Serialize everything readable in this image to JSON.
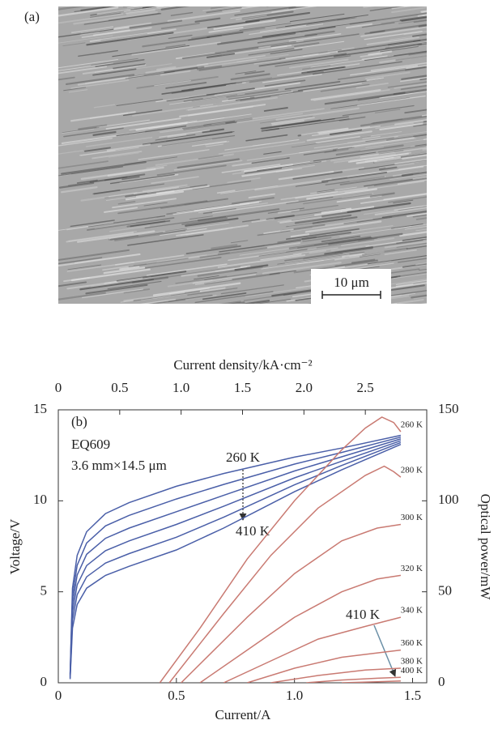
{
  "image": {
    "label": "(a)",
    "scale_bar": "10 μm"
  },
  "chart_data": {
    "type": "line",
    "panel_label": "(b)",
    "annotations": [
      "EQ609",
      "3.6 mm×14.5 μm",
      "260 K",
      "410 K",
      "410 K"
    ],
    "xlabel": "Current/A",
    "x2label": "Current density/kA·cm⁻²",
    "ylabel": "Voltage/V",
    "y2label": "Optical power/mW",
    "xlim": [
      0,
      1.56
    ],
    "xticks": [
      0,
      0.5,
      {
        "value": 1,
        "label": "1.0"
      },
      1.5
    ],
    "x2lim": [
      0,
      3.0
    ],
    "x2ticks": [
      0,
      0.5,
      {
        "value": 1,
        "label": "1.0"
      },
      1.5,
      {
        "value": 2,
        "label": "2.0"
      },
      2.5
    ],
    "ylim": [
      0,
      15
    ],
    "yticks": [
      0,
      5,
      10,
      15
    ],
    "y2lim": [
      0,
      150
    ],
    "y2ticks": [
      0,
      50,
      100,
      150
    ],
    "y_color": "#4a62ae",
    "y2_color": "#d9534a",
    "series": [
      {
        "color": "#4a5fa8",
        "x": [
          0.05,
          0.06,
          0.08,
          0.12,
          0.2,
          0.3,
          0.5,
          0.7,
          1.0,
          1.2,
          1.45
        ],
        "values": [
          0.5,
          5.2,
          7.0,
          8.3,
          9.3,
          9.9,
          10.8,
          11.5,
          12.4,
          12.9,
          13.6
        ]
      },
      {
        "color": "#4a5fa8",
        "x": [
          0.05,
          0.06,
          0.08,
          0.12,
          0.2,
          0.3,
          0.5,
          0.7,
          1.0,
          1.2,
          1.45
        ],
        "values": [
          0.44,
          4.76,
          6.46,
          7.68,
          8.62,
          9.2,
          10.1,
          10.9,
          12.02,
          12.66,
          13.5
        ]
      },
      {
        "color": "#4a5fa8",
        "x": [
          0.05,
          0.06,
          0.08,
          0.12,
          0.2,
          0.3,
          0.5,
          0.7,
          1.0,
          1.2,
          1.45
        ],
        "values": [
          0.38,
          4.32,
          5.92,
          7.06,
          7.94,
          8.5,
          9.4,
          10.3,
          11.64,
          12.42,
          13.4
        ]
      },
      {
        "color": "#4a5fa8",
        "x": [
          0.05,
          0.06,
          0.08,
          0.12,
          0.2,
          0.3,
          0.5,
          0.7,
          1.0,
          1.2,
          1.45
        ],
        "values": [
          0.32,
          3.88,
          5.38,
          6.44,
          7.26,
          7.8,
          8.7,
          9.7,
          11.26,
          12.18,
          13.3
        ]
      },
      {
        "color": "#4a5fa8",
        "x": [
          0.05,
          0.06,
          0.08,
          0.12,
          0.2,
          0.3,
          0.5,
          0.7,
          1.0,
          1.2,
          1.45
        ],
        "values": [
          0.26,
          3.44,
          4.84,
          5.82,
          6.58,
          7.1,
          8.0,
          9.1,
          10.88,
          11.94,
          13.2
        ]
      },
      {
        "color": "#4a5fa8",
        "x": [
          0.05,
          0.06,
          0.08,
          0.12,
          0.2,
          0.3,
          0.5,
          0.7,
          1.0,
          1.2,
          1.45
        ],
        "values": [
          0.2,
          3.0,
          4.3,
          5.2,
          5.9,
          6.4,
          7.3,
          8.5,
          10.5,
          11.7,
          13.1
        ]
      },
      {
        "name": "260 K",
        "color": "#c97a72",
        "axis": "y2",
        "x": [
          0.43,
          0.6,
          0.8,
          1.0,
          1.2,
          1.3,
          1.37,
          1.42,
          1.45
        ],
        "values": [
          0,
          30,
          68,
          100,
          128,
          140,
          146,
          143,
          138
        ]
      },
      {
        "name": "280 K",
        "color": "#c97a72",
        "axis": "y2",
        "x": [
          0.47,
          0.7,
          0.9,
          1.1,
          1.3,
          1.38,
          1.42,
          1.45
        ],
        "values": [
          0,
          38,
          70,
          96,
          114,
          119,
          116,
          113
        ]
      },
      {
        "name": "300 K",
        "color": "#c97a72",
        "axis": "y2",
        "x": [
          0.52,
          0.8,
          1.0,
          1.2,
          1.35,
          1.45
        ],
        "values": [
          0,
          36,
          60,
          78,
          85,
          87
        ]
      },
      {
        "name": "320 K",
        "color": "#c97a72",
        "axis": "y2",
        "x": [
          0.6,
          0.8,
          1.0,
          1.2,
          1.35,
          1.45
        ],
        "values": [
          0,
          18,
          36,
          50,
          57,
          59
        ]
      },
      {
        "name": "340 K",
        "color": "#c97a72",
        "axis": "y2",
        "x": [
          0.7,
          0.9,
          1.1,
          1.3,
          1.45
        ],
        "values": [
          0,
          12,
          24,
          31,
          36
        ]
      },
      {
        "name": "360 K",
        "color": "#c97a72",
        "axis": "y2",
        "x": [
          0.8,
          1.0,
          1.2,
          1.45
        ],
        "values": [
          0,
          8,
          14,
          18
        ]
      },
      {
        "name": "380 K",
        "color": "#c97a72",
        "axis": "y2",
        "x": [
          0.9,
          1.1,
          1.3,
          1.45
        ],
        "values": [
          0,
          4,
          7,
          8
        ]
      },
      {
        "name": "400 K",
        "color": "#c97a72",
        "axis": "y2",
        "x": [
          1.05,
          1.2,
          1.35,
          1.45
        ],
        "values": [
          0,
          1.5,
          2.5,
          3
        ]
      },
      {
        "color": "#c97a72",
        "axis": "y2",
        "x": [
          1.2,
          1.35,
          1.45
        ],
        "values": [
          0,
          0.6,
          1
        ]
      }
    ]
  }
}
